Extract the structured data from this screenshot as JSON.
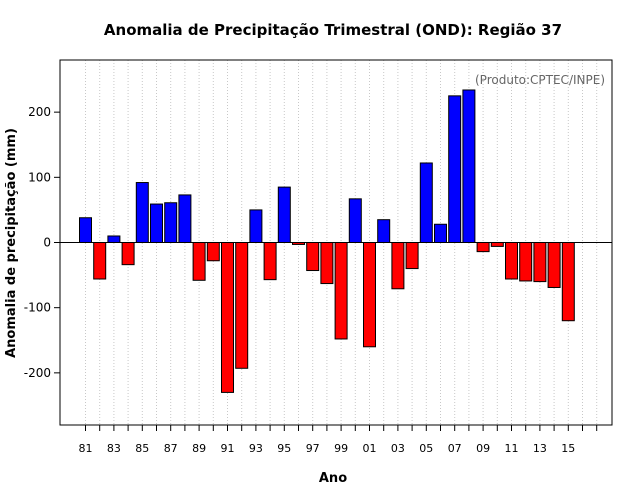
{
  "chart_data": {
    "type": "bar",
    "title": "Anomalia de Precipitação Trimestral (OND): Região 37",
    "xlabel": "Ano",
    "ylabel": "Anomalia de precipitação (mm)",
    "annotation": "(Produto:CPTEC/INPE)",
    "ylim": [
      -280,
      280
    ],
    "yticks": [
      -200,
      -100,
      0,
      100,
      200
    ],
    "grid": "vertical-dotted",
    "categories": [
      "81",
      "82",
      "83",
      "84",
      "85",
      "86",
      "87",
      "88",
      "89",
      "90",
      "91",
      "92",
      "93",
      "94",
      "95",
      "96",
      "97",
      "98",
      "99",
      "00",
      "01",
      "02",
      "03",
      "04",
      "05",
      "06",
      "07",
      "08",
      "09",
      "10",
      "11",
      "12",
      "13",
      "14",
      "15"
    ],
    "xtick_labels": [
      "81",
      "83",
      "85",
      "87",
      "89",
      "91",
      "93",
      "95",
      "97",
      "99",
      "01",
      "03",
      "05",
      "07",
      "09",
      "11",
      "13",
      "15"
    ],
    "values": [
      38,
      -56,
      10,
      -34,
      92,
      59,
      61,
      73,
      -58,
      -28,
      -230,
      -193,
      50,
      -57,
      85,
      -3,
      -43,
      -63,
      -148,
      67,
      -160,
      35,
      -71,
      -40,
      122,
      28,
      225,
      234,
      -14,
      -6,
      -56,
      -59,
      -60,
      -69,
      -120
    ],
    "positive_color": "#0000ff",
    "negative_color": "#ff0000"
  }
}
